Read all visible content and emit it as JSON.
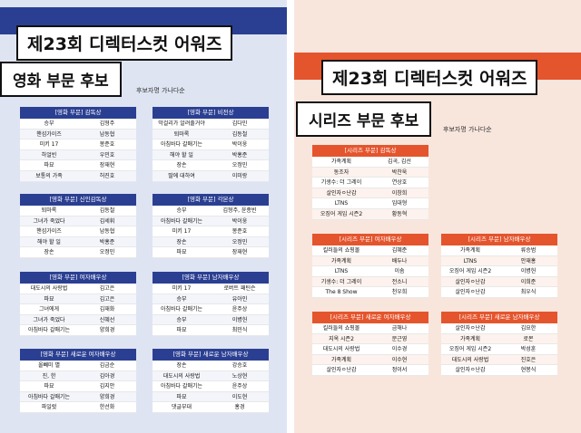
{
  "film_poster": {
    "title": "제23회 디렉터스컷 어워즈",
    "subtitle": "영화 부문 후보",
    "note": "후보자명 가나다순",
    "cards": [
      {
        "header": "[영화 부문] 감독상",
        "rows": [
          [
            "승부",
            "김형주"
          ],
          [
            "핸섬가이즈",
            "남동협"
          ],
          [
            "미키 17",
            "봉준호"
          ],
          [
            "하얼빈",
            "우민호"
          ],
          [
            "파묘",
            "장재현"
          ],
          [
            "보통의 가족",
            "허진호"
          ]
        ]
      },
      {
        "header": "[영화 부문] 비전상",
        "rows": [
          [
            "막걸리가 알려줄거야",
            "김다민"
          ],
          [
            "퇴마록",
            "김동철"
          ],
          [
            "아침바다 갈매기는",
            "박이웅"
          ],
          [
            "해야 할 일",
            "박홍준"
          ],
          [
            "장손",
            "오정민"
          ],
          [
            "딸에 대하여",
            "이미랑"
          ]
        ]
      },
      {
        "header": "[영화 부문] 신인감독상",
        "rows": [
          [
            "퇴마록",
            "김동철"
          ],
          [
            "그녀가 죽었다",
            "김세휘"
          ],
          [
            "핸섬가이즈",
            "남동협"
          ],
          [
            "해야 할 일",
            "박홍준"
          ],
          [
            "장손",
            "오정민"
          ]
        ]
      },
      {
        "header": "[영화 부문] 각본상",
        "rows": [
          [
            "승부",
            "김형주, 윤종빈"
          ],
          [
            "아침바다 갈매기는",
            "박이웅"
          ],
          [
            "미키 17",
            "봉준호"
          ],
          [
            "장손",
            "오정민"
          ],
          [
            "파묘",
            "장재현"
          ]
        ]
      },
      {
        "header": "[영화 부문] 여자배우상",
        "rows": [
          [
            "대도시의 사랑법",
            "김고은"
          ],
          [
            "파묘",
            "김고은"
          ],
          [
            "그녀에게",
            "김재화"
          ],
          [
            "그녀가 죽었다",
            "신혜선"
          ],
          [
            "아침바다 갈매기는",
            "양희경"
          ]
        ]
      },
      {
        "header": "[영화 부문] 남자배우상",
        "rows": [
          [
            "미키 17",
            "로버트 패틴슨"
          ],
          [
            "승부",
            "유아인"
          ],
          [
            "아침바다 갈매기는",
            "윤주상"
          ],
          [
            "승부",
            "이병헌"
          ],
          [
            "파묘",
            "최민식"
          ]
        ]
      },
      {
        "header": "[영화 부문] 새로운 여자배우상",
        "rows": [
          [
            "올빼미 별",
            "김금순"
          ],
          [
            "진, 한",
            "김아경"
          ],
          [
            "파묘",
            "김지안"
          ],
          [
            "아침바다 갈매기는",
            "양희경"
          ],
          [
            "파일럿",
            "한선화"
          ]
        ]
      },
      {
        "header": "[영화 부문] 새로운 남자배우상",
        "rows": [
          [
            "장손",
            "강승호"
          ],
          [
            "대도시의 사랑법",
            "노상현"
          ],
          [
            "아침바다 갈매기는",
            "윤주상"
          ],
          [
            "파묘",
            "이도현"
          ],
          [
            "댓글부대",
            "홍경"
          ]
        ]
      }
    ]
  },
  "series_poster": {
    "title": "제23회 디렉터스컷 어워즈",
    "subtitle": "시리즈 부문 후보",
    "note": "후보자명 가나다순",
    "cards": [
      {
        "header": "[시리즈 부문] 감독상",
        "rows": [
          [
            "가족계획",
            "김곡, 김선"
          ],
          [
            "동조자",
            "박찬욱"
          ],
          [
            "기생수: 더 그레이",
            "연상호"
          ],
          [
            "살인자ㅇ난감",
            "이창희"
          ],
          [
            "LTNS",
            "임대형"
          ],
          [
            "오징어 게임 시즌2",
            "황동혁"
          ]
        ]
      },
      {
        "header": "[시리즈 부문] 여자배우상",
        "rows": [
          [
            "킬러들의 쇼핑몰",
            "김혜준"
          ],
          [
            "가족계획",
            "배두나"
          ],
          [
            "LTNS",
            "이솜"
          ],
          [
            "기생수: 더 그레이",
            "전소니"
          ],
          [
            "The 8 Show",
            "천우희"
          ]
        ]
      },
      {
        "header": "[시리즈 부문] 남자배우상",
        "rows": [
          [
            "가족계획",
            "류승범"
          ],
          [
            "LTNS",
            "안재홍"
          ],
          [
            "오징어 게임 시즌2",
            "이병헌"
          ],
          [
            "살인자ㅇ난감",
            "이희준"
          ],
          [
            "살인자ㅇ난감",
            "최우식"
          ]
        ]
      },
      {
        "header": "[시리즈 부문] 새로운 여자배우상",
        "rows": [
          [
            "킬러들의 쇼핑몰",
            "금해나"
          ],
          [
            "지옥 시즌2",
            "문근영"
          ],
          [
            "대도시의 사랑법",
            "이수경"
          ],
          [
            "가족계획",
            "이수현"
          ],
          [
            "살인자ㅇ난감",
            "정이서"
          ]
        ]
      },
      {
        "header": "[시리즈 부문] 새로운 남자배우상",
        "rows": [
          [
            "살인자ㅇ난감",
            "김요한"
          ],
          [
            "가족계획",
            "로몬"
          ],
          [
            "오징어 게임 시즌2",
            "박성훈"
          ],
          [
            "대도시의 사랑법",
            "진호은"
          ],
          [
            "살인자ㅇ난감",
            "현봉식"
          ]
        ]
      }
    ]
  }
}
